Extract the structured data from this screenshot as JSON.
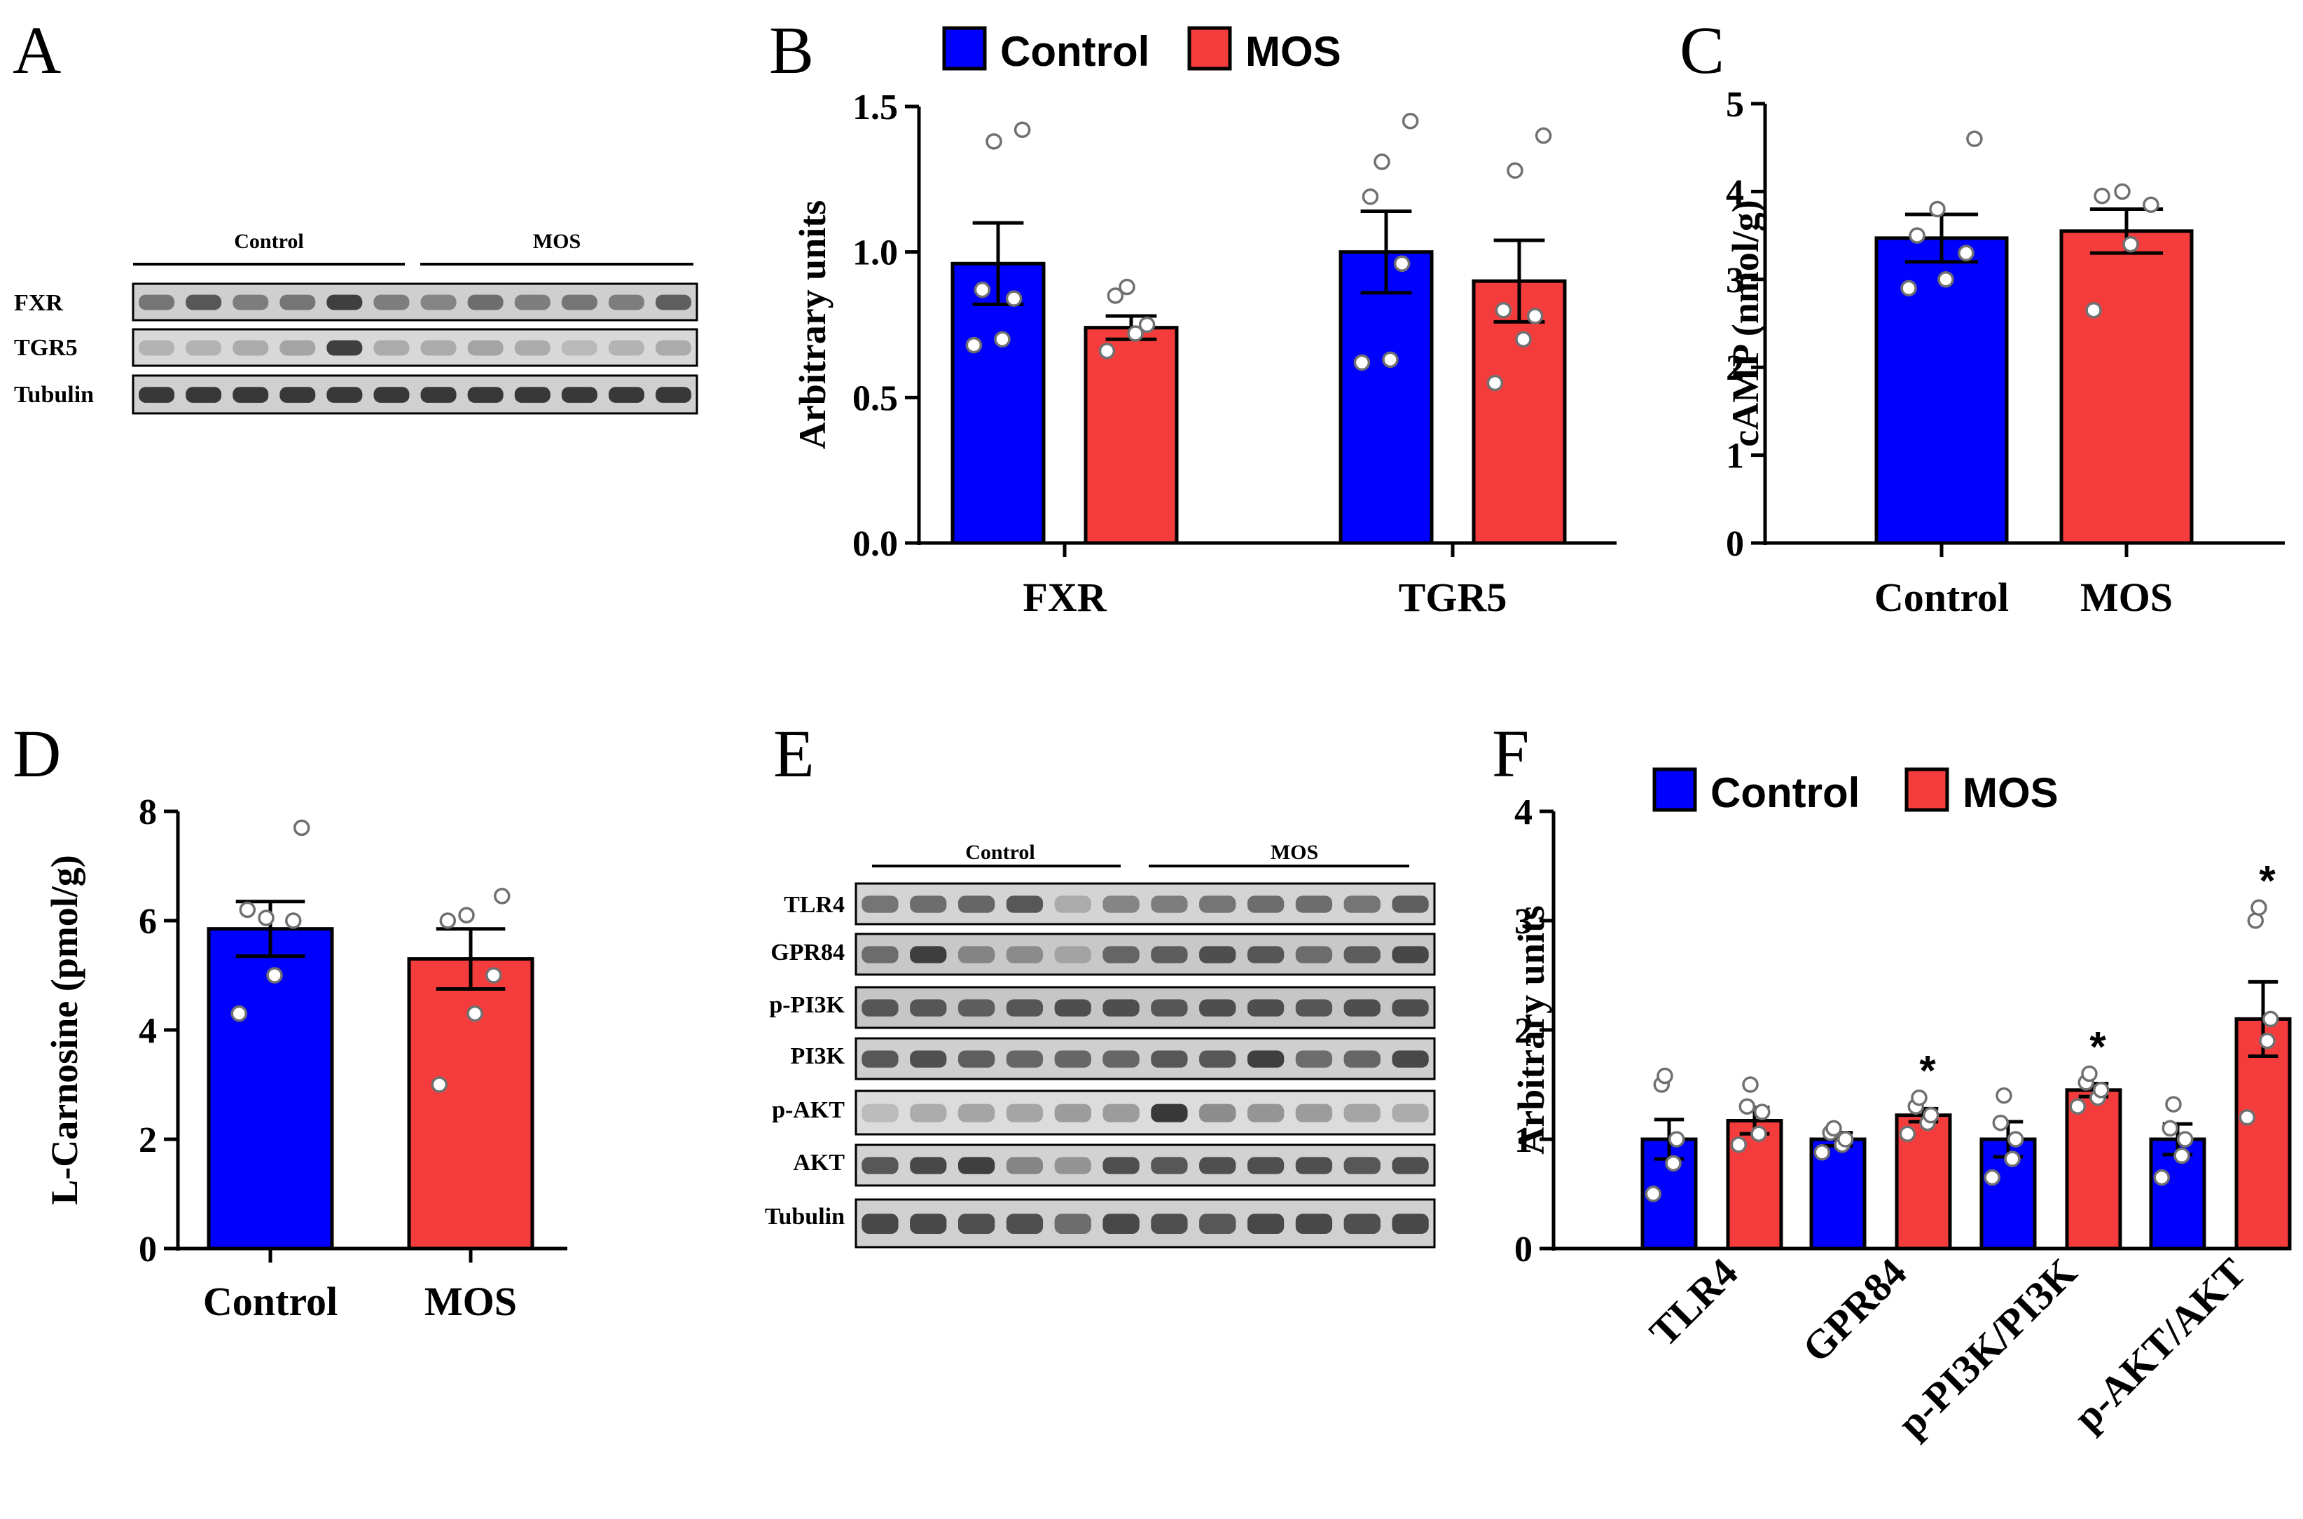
{
  "colors": {
    "control": "#0000ff",
    "mos": "#f53c3c",
    "axis": "#000000",
    "point": "#ffffff"
  },
  "panels": {
    "A": {
      "letter": "A",
      "groups": [
        "Control",
        "MOS"
      ],
      "bands": [
        "FXR",
        "TGR5",
        "Tubulin"
      ]
    },
    "E": {
      "letter": "E",
      "groups": [
        "Control",
        "MOS"
      ],
      "bands": [
        "TLR4",
        "GPR84",
        "p-PI3K",
        "PI3K",
        "p-AKT",
        "AKT",
        "Tubulin"
      ]
    }
  },
  "chart_data": [
    {
      "panel": "B",
      "letter": "B",
      "type": "bar",
      "title": "",
      "ylabel": "Arbitrary units",
      "xlabel": "",
      "ylim": [
        0,
        1.5
      ],
      "yticks": [
        0.0,
        0.5,
        1.0,
        1.5
      ],
      "ytick_labels": [
        "0.0",
        "0.5",
        "1.0",
        "1.5"
      ],
      "legend": {
        "labels": [
          "Control",
          "MOS"
        ],
        "placement": "top"
      },
      "categories": [
        "FXR",
        "TGR5"
      ],
      "series": [
        {
          "name": "Control",
          "values": [
            0.96,
            1.0
          ],
          "errors": [
            0.14,
            0.14
          ],
          "points": [
            [
              0.68,
              0.7,
              0.84,
              0.87,
              1.38,
              1.42
            ],
            [
              0.62,
              0.63,
              0.96,
              1.19,
              1.31,
              1.45
            ]
          ]
        },
        {
          "name": "MOS",
          "values": [
            0.74,
            0.9
          ],
          "errors": [
            0.04,
            0.14
          ],
          "points": [
            [
              0.66,
              0.72,
              0.75,
              0.85,
              0.88
            ],
            [
              0.55,
              0.7,
              0.78,
              0.8,
              1.28,
              1.4
            ]
          ]
        }
      ],
      "significance": []
    },
    {
      "panel": "C",
      "letter": "C",
      "type": "bar",
      "title": "",
      "ylabel": "cAMP (nmol/g)",
      "xlabel": "",
      "ylim": [
        0,
        5
      ],
      "yticks": [
        0,
        1,
        2,
        3,
        4,
        5
      ],
      "ytick_labels": [
        "0",
        "1",
        "2",
        "3",
        "4",
        "5"
      ],
      "categories": [
        "Control",
        "MOS"
      ],
      "series": [
        {
          "name": "Control",
          "values": [
            3.47,
            null
          ],
          "errors": [
            0.27,
            null
          ],
          "points": [
            [
              2.9,
              3.0,
              3.3,
              3.5,
              3.8,
              4.6
            ],
            []
          ]
        },
        {
          "name": "MOS",
          "values": [
            null,
            3.55
          ],
          "errors": [
            null,
            0.25
          ],
          "points": [
            [],
            [
              2.65,
              3.4,
              3.85,
              3.95,
              4.0
            ]
          ]
        }
      ],
      "significance": []
    },
    {
      "panel": "D",
      "letter": "D",
      "type": "bar",
      "title": "",
      "ylabel": "L-Carnosine (pmol/g)",
      "xlabel": "",
      "ylim": [
        0,
        8
      ],
      "yticks": [
        0,
        2,
        4,
        6,
        8
      ],
      "ytick_labels": [
        "0",
        "2",
        "4",
        "6",
        "8"
      ],
      "categories": [
        "Control",
        "MOS"
      ],
      "series": [
        {
          "name": "Control",
          "values": [
            5.85,
            null
          ],
          "errors": [
            0.5,
            null
          ],
          "points": [
            [
              4.3,
              5.0,
              6.0,
              6.2,
              6.05,
              7.7
            ],
            []
          ]
        },
        {
          "name": "MOS",
          "values": [
            null,
            5.3
          ],
          "errors": [
            null,
            0.55
          ],
          "points": [
            [],
            [
              3.0,
              4.3,
              5.0,
              6.0,
              6.1,
              6.45
            ]
          ]
        }
      ],
      "significance": []
    },
    {
      "panel": "F",
      "letter": "F",
      "type": "bar",
      "title": "",
      "ylabel": "Arbitrary units",
      "xlabel": "",
      "ylim": [
        0,
        4
      ],
      "yticks": [
        0,
        1,
        2,
        3,
        4
      ],
      "ytick_labels": [
        "0",
        "1",
        "2",
        "3",
        "4"
      ],
      "legend": {
        "labels": [
          "Control",
          "MOS"
        ],
        "placement": "top"
      },
      "categories": [
        "TLR4",
        "GPR84",
        "p-PI3K/PI3K",
        "p-AKT/AKT"
      ],
      "series": [
        {
          "name": "Control",
          "values": [
            1.0,
            1.0,
            1.0,
            1.0
          ],
          "errors": [
            0.18,
            0.06,
            0.16,
            0.14
          ],
          "points": [
            [
              0.5,
              0.78,
              1.0,
              1.5,
              1.58
            ],
            [
              0.88,
              0.95,
              1.0,
              1.06,
              1.1
            ],
            [
              0.65,
              0.82,
              1.0,
              1.15,
              1.4
            ],
            [
              0.65,
              0.85,
              1.0,
              1.1,
              1.32
            ]
          ]
        },
        {
          "name": "MOS",
          "values": [
            1.17,
            1.22,
            1.45,
            2.1
          ],
          "errors": [
            0.12,
            0.06,
            0.06,
            0.34
          ],
          "points": [
            [
              0.95,
              1.05,
              1.25,
              1.3,
              1.5
            ],
            [
              1.05,
              1.15,
              1.22,
              1.3,
              1.38
            ],
            [
              1.3,
              1.38,
              1.45,
              1.52,
              1.6
            ],
            [
              1.2,
              1.9,
              2.1,
              3.0,
              3.12
            ]
          ]
        }
      ],
      "significance": [
        {
          "category_index": 1,
          "series": "MOS",
          "label": "*"
        },
        {
          "category_index": 2,
          "series": "MOS",
          "label": "*"
        },
        {
          "category_index": 3,
          "series": "MOS",
          "label": "*"
        }
      ]
    }
  ]
}
